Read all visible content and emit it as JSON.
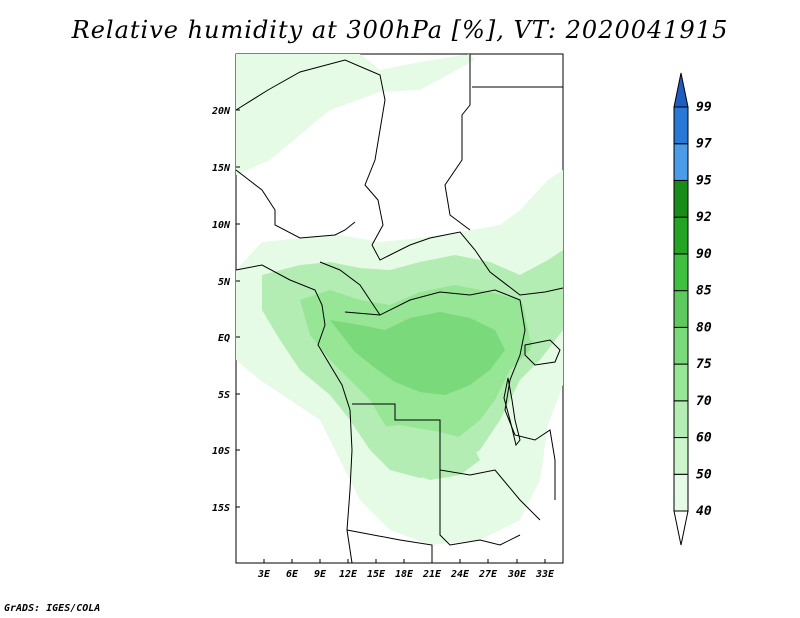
{
  "title": "Relative humidity at 300hPa [%], VT: 2020041915",
  "credit": "GrADS: IGES/COLA",
  "lat_labels": [
    "20N",
    "15N",
    "10N",
    "5N",
    "EQ",
    "5S",
    "10S",
    "15S"
  ],
  "lon_labels": [
    "3E",
    "6E",
    "9E",
    "12E",
    "15E",
    "18E",
    "21E",
    "24E",
    "27E",
    "30E",
    "33E"
  ],
  "colorbar": {
    "levels": [
      "40",
      "50",
      "60",
      "70",
      "75",
      "80",
      "85",
      "90",
      "92",
      "95",
      "97",
      "99"
    ],
    "colors": [
      "#ffffff",
      "#e6fbe6",
      "#ccf5cc",
      "#b3edb3",
      "#96e696",
      "#7ad97a",
      "#5ec95e",
      "#40bf40",
      "#23a523",
      "#188c18",
      "#4a9be8",
      "#2a78d6",
      "#1e5cc0"
    ]
  },
  "colors": {
    "land_border": "#000000",
    "rh_40_50": "#e6fbe6",
    "rh_50_60": "#ccf5cc",
    "rh_60_70": "#b3edb3",
    "rh_70_75": "#96e696",
    "rh_75_80": "#7ad97a"
  }
}
